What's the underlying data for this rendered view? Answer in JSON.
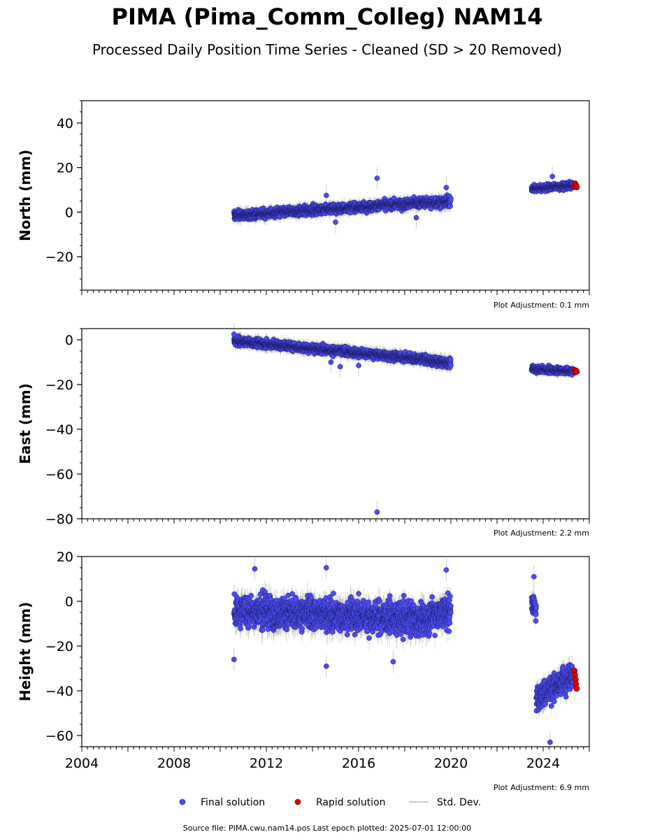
{
  "title": "PIMA (Pima_Comm_Colleg) NAM14",
  "subtitle": "Processed Daily Position Time Series - Cleaned (SD > 20 Removed)",
  "source": "Source file: PIMA.cwu.nam14.pos  Last epoch plotted: 2025-07-01 12:00:00",
  "legend": [
    {
      "label": "Final solution",
      "color": "#4c4cf0"
    },
    {
      "label": "Rapid solution",
      "color": "#e00000"
    },
    {
      "label": "Std. Dev.",
      "color": "#bbbbbb"
    }
  ],
  "colors": {
    "final": "#4c4cf0",
    "rapid": "#e00000",
    "stddev": "#999999"
  },
  "chart_data": [
    {
      "type": "scatter",
      "ylabel": "North (mm)",
      "ylim": [
        -35,
        50
      ],
      "yticks": [
        -20,
        0,
        20,
        40
      ],
      "xlim": [
        2004,
        2026
      ],
      "adjustment": "Plot Adjustment: 0.1 mm",
      "segments": [
        {
          "start": 2010.6,
          "end": 2019.1,
          "y0": -1.5,
          "y1": 4.5,
          "noise": 1.4,
          "err": 2.2
        },
        {
          "start": 2019.1,
          "end": 2020.0,
          "y0": 4.0,
          "y1": 5.0,
          "noise": 1.6,
          "err": 2.5
        },
        {
          "start": 2023.5,
          "end": 2025.3,
          "y0": 10.5,
          "y1": 12.0,
          "noise": 1.0,
          "err": 1.6
        }
      ],
      "outliers": [
        [
          2014.6,
          7.5
        ],
        [
          2016.8,
          15.2
        ],
        [
          2018.5,
          -2.5
        ],
        [
          2019.8,
          11.0
        ],
        [
          2015.0,
          -4.5
        ],
        [
          2024.4,
          16.0
        ]
      ],
      "rapid": [
        [
          2025.35,
          11.5
        ],
        [
          2025.38,
          12.8
        ],
        [
          2025.42,
          12.0
        ],
        [
          2025.45,
          11.2
        ]
      ]
    },
    {
      "type": "scatter",
      "ylabel": "East (mm)",
      "ylim": [
        -80,
        5
      ],
      "yticks": [
        -80,
        -60,
        -40,
        -20,
        0
      ],
      "xlim": [
        2004,
        2026
      ],
      "adjustment": "Plot Adjustment: 2.2 mm",
      "segments": [
        {
          "start": 2010.6,
          "end": 2019.1,
          "y0": -0.5,
          "y1": -9.0,
          "noise": 1.3,
          "err": 2.2
        },
        {
          "start": 2019.1,
          "end": 2020.0,
          "y0": -9.5,
          "y1": -10.5,
          "noise": 1.4,
          "err": 2.4
        },
        {
          "start": 2023.5,
          "end": 2025.3,
          "y0": -13.0,
          "y1": -14.0,
          "noise": 1.0,
          "err": 1.8
        }
      ],
      "outliers": [
        [
          2016.8,
          -77.0
        ],
        [
          2014.8,
          -10.0
        ],
        [
          2015.2,
          -12.0
        ],
        [
          2016.0,
          -11.5
        ],
        [
          2010.6,
          2.5
        ]
      ],
      "rapid": [
        [
          2025.35,
          -13.5
        ],
        [
          2025.38,
          -14.5
        ],
        [
          2025.42,
          -13.8
        ],
        [
          2025.45,
          -14.2
        ]
      ]
    },
    {
      "type": "scatter",
      "ylabel": "Height (mm)",
      "ylim": [
        -65,
        20
      ],
      "yticks": [
        -60,
        -40,
        -20,
        0,
        20
      ],
      "xlim": [
        2004,
        2026
      ],
      "xticks": [
        2004,
        2008,
        2012,
        2016,
        2020,
        2024
      ],
      "adjustment": "Plot Adjustment: 6.9 mm",
      "segments": [
        {
          "start": 2010.6,
          "end": 2019.1,
          "y0": -4.0,
          "y1": -8.0,
          "noise": 5.0,
          "err": 4.5
        },
        {
          "start": 2019.1,
          "end": 2020.0,
          "y0": -6.0,
          "y1": -5.0,
          "noise": 5.0,
          "err": 4.5
        },
        {
          "start": 2023.5,
          "end": 2023.7,
          "y0": 0.0,
          "y1": -4.0,
          "noise": 3.0,
          "err": 3.5
        },
        {
          "start": 2023.7,
          "end": 2025.3,
          "y0": -44.0,
          "y1": -32.0,
          "noise": 4.0,
          "err": 3.5
        }
      ],
      "outliers": [
        [
          2010.6,
          -26.0
        ],
        [
          2014.6,
          -29.0
        ],
        [
          2017.5,
          -27.0
        ],
        [
          2023.6,
          11.0
        ],
        [
          2024.3,
          -63.0
        ],
        [
          2011.5,
          14.5
        ],
        [
          2014.6,
          15.0
        ],
        [
          2019.8,
          14.0
        ]
      ],
      "rapid": [
        [
          2025.35,
          -31.0
        ],
        [
          2025.37,
          -33.0
        ],
        [
          2025.4,
          -35.0
        ],
        [
          2025.42,
          -37.0
        ],
        [
          2025.45,
          -39.0
        ]
      ]
    }
  ]
}
